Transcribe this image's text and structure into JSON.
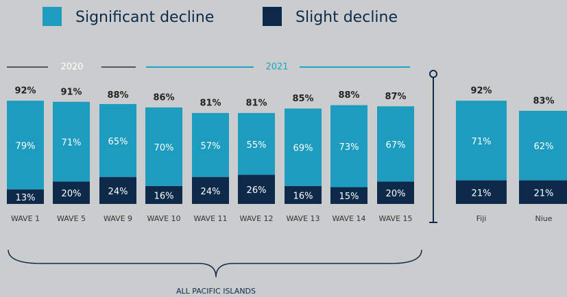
{
  "chart_data": {
    "type": "stacked_bar",
    "categories": [
      "WAVE 1",
      "WAVE 5",
      "WAVE 9",
      "WAVE 10",
      "WAVE 11",
      "WAVE 12",
      "WAVE 13",
      "WAVE 14",
      "WAVE 15",
      "Fiji",
      "Niue"
    ],
    "series": [
      {
        "name": "Significant decline",
        "color": "#1e9cc0",
        "values": [
          79,
          71,
          65,
          70,
          57,
          55,
          69,
          73,
          67,
          71,
          62
        ],
        "value_labels": [
          "79%",
          "71%",
          "65%",
          "70%",
          "57%",
          "55%",
          "69%",
          "73%",
          "67%",
          "71%",
          "62%"
        ]
      },
      {
        "name": "Slight decline",
        "color": "#0e2a4b",
        "values": [
          13,
          20,
          24,
          16,
          24,
          26,
          16,
          15,
          20,
          21,
          21
        ],
        "value_labels": [
          "13%",
          "20%",
          "24%",
          "16%",
          "24%",
          "26%",
          "16%",
          "15%",
          "20%",
          "21%",
          "21%"
        ]
      }
    ],
    "totals": [
      92,
      91,
      88,
      86,
      81,
      81,
      85,
      88,
      87,
      92,
      83
    ],
    "total_labels": [
      "92%",
      "91%",
      "88%",
      "86%",
      "81%",
      "81%",
      "85%",
      "88%",
      "87%",
      "92%",
      "83%"
    ],
    "annotations": {
      "period_2020": "2020",
      "period_2021": "2021",
      "group": "ALL PACIFIC ISLANDS"
    }
  }
}
